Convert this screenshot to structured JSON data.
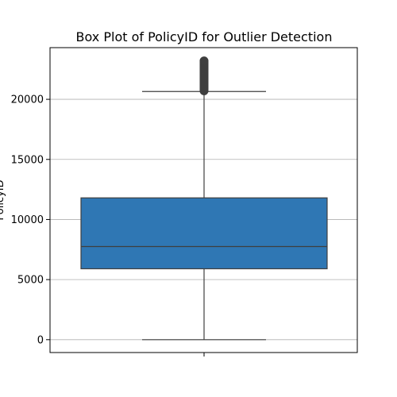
{
  "chart_data": {
    "type": "box",
    "title": "Box Plot of PolicyID for Outlier Detection",
    "ylabel": "PolicyID",
    "xlabel": "",
    "ylim": [
      -1070,
      24300
    ],
    "yticks": [
      0,
      5000,
      10000,
      15000,
      20000
    ],
    "grid": true,
    "box": {
      "color": "#2f77b4",
      "edge_color": "#3f3f3f",
      "whisker_low": 0,
      "q1": 5900,
      "median": 7750,
      "q3": 11800,
      "whisker_high": 20650,
      "outliers_range": [
        20700,
        23200
      ]
    }
  }
}
